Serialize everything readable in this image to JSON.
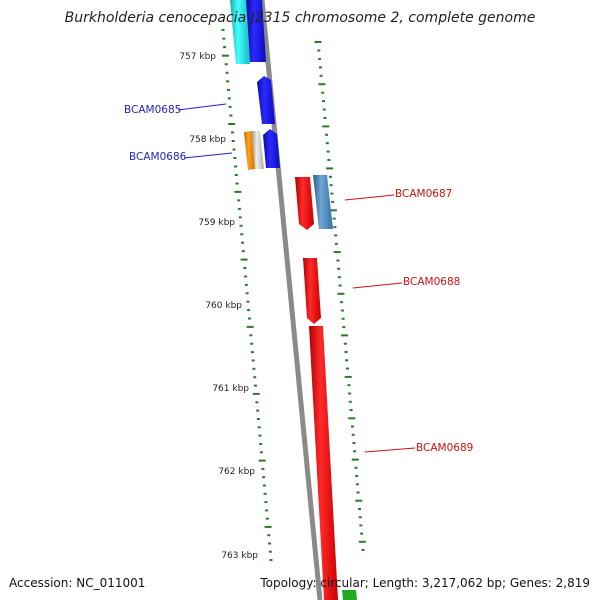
{
  "header": {
    "title": "Burkholderia cenocepacia J2315 chromosome 2, complete genome"
  },
  "footer": {
    "accession": "Accession: NC_011001",
    "stats": "Topology: circular; Length: 3,217,062 bp; Genes: 2,819"
  },
  "colors": {
    "backbone": "#888888",
    "tick": "#2a7a2a",
    "blue_gene": "#1a1aee",
    "red_gene": "#ee1111",
    "cyan_gene": "#22dddd",
    "steel_gene": "#4682b4",
    "orange_gene": "#ee8800",
    "grey_gene": "#c8c8c8",
    "label_blue": "#2222cc",
    "label_red": "#cc1111"
  },
  "kbp_labels": [
    "757 kbp",
    "758 kbp",
    "759 kbp",
    "760 kbp",
    "761 kbp",
    "762 kbp",
    "763 kbp"
  ],
  "gene_labels": {
    "left": [
      "BCAM0685",
      "BCAM0686"
    ],
    "right": [
      "BCAM0687",
      "BCAM0688",
      "BCAM0689"
    ]
  }
}
